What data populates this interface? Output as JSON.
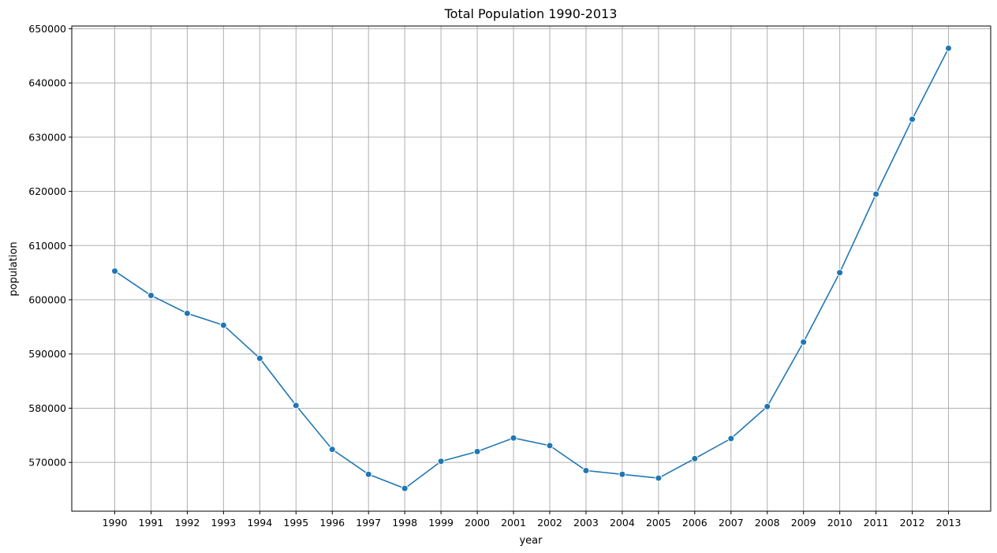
{
  "chart_data": {
    "type": "line",
    "title": "Total Population 1990-2013",
    "xlabel": "year",
    "ylabel": "population",
    "x": [
      "1990",
      "1991",
      "1992",
      "1993",
      "1994",
      "1995",
      "1996",
      "1997",
      "1998",
      "1999",
      "2000",
      "2001",
      "2002",
      "2003",
      "2004",
      "2005",
      "2006",
      "2007",
      "2008",
      "2009",
      "2010",
      "2011",
      "2012",
      "2013"
    ],
    "series": [
      {
        "values": [
          605300,
          600800,
          597500,
          595300,
          589200,
          580500,
          572400,
          567800,
          565200,
          570200,
          572000,
          574500,
          573100,
          568500,
          567800,
          567100,
          570700,
          574400,
          580300,
          592200,
          605000,
          619500,
          633300,
          646400
        ],
        "color": "#1f77b4",
        "marker": "circle"
      }
    ],
    "yticks": [
      "570000",
      "580000",
      "590000",
      "600000",
      "610000",
      "620000",
      "630000",
      "640000",
      "650000"
    ],
    "ylim": [
      561000,
      650500
    ],
    "grid": true
  }
}
